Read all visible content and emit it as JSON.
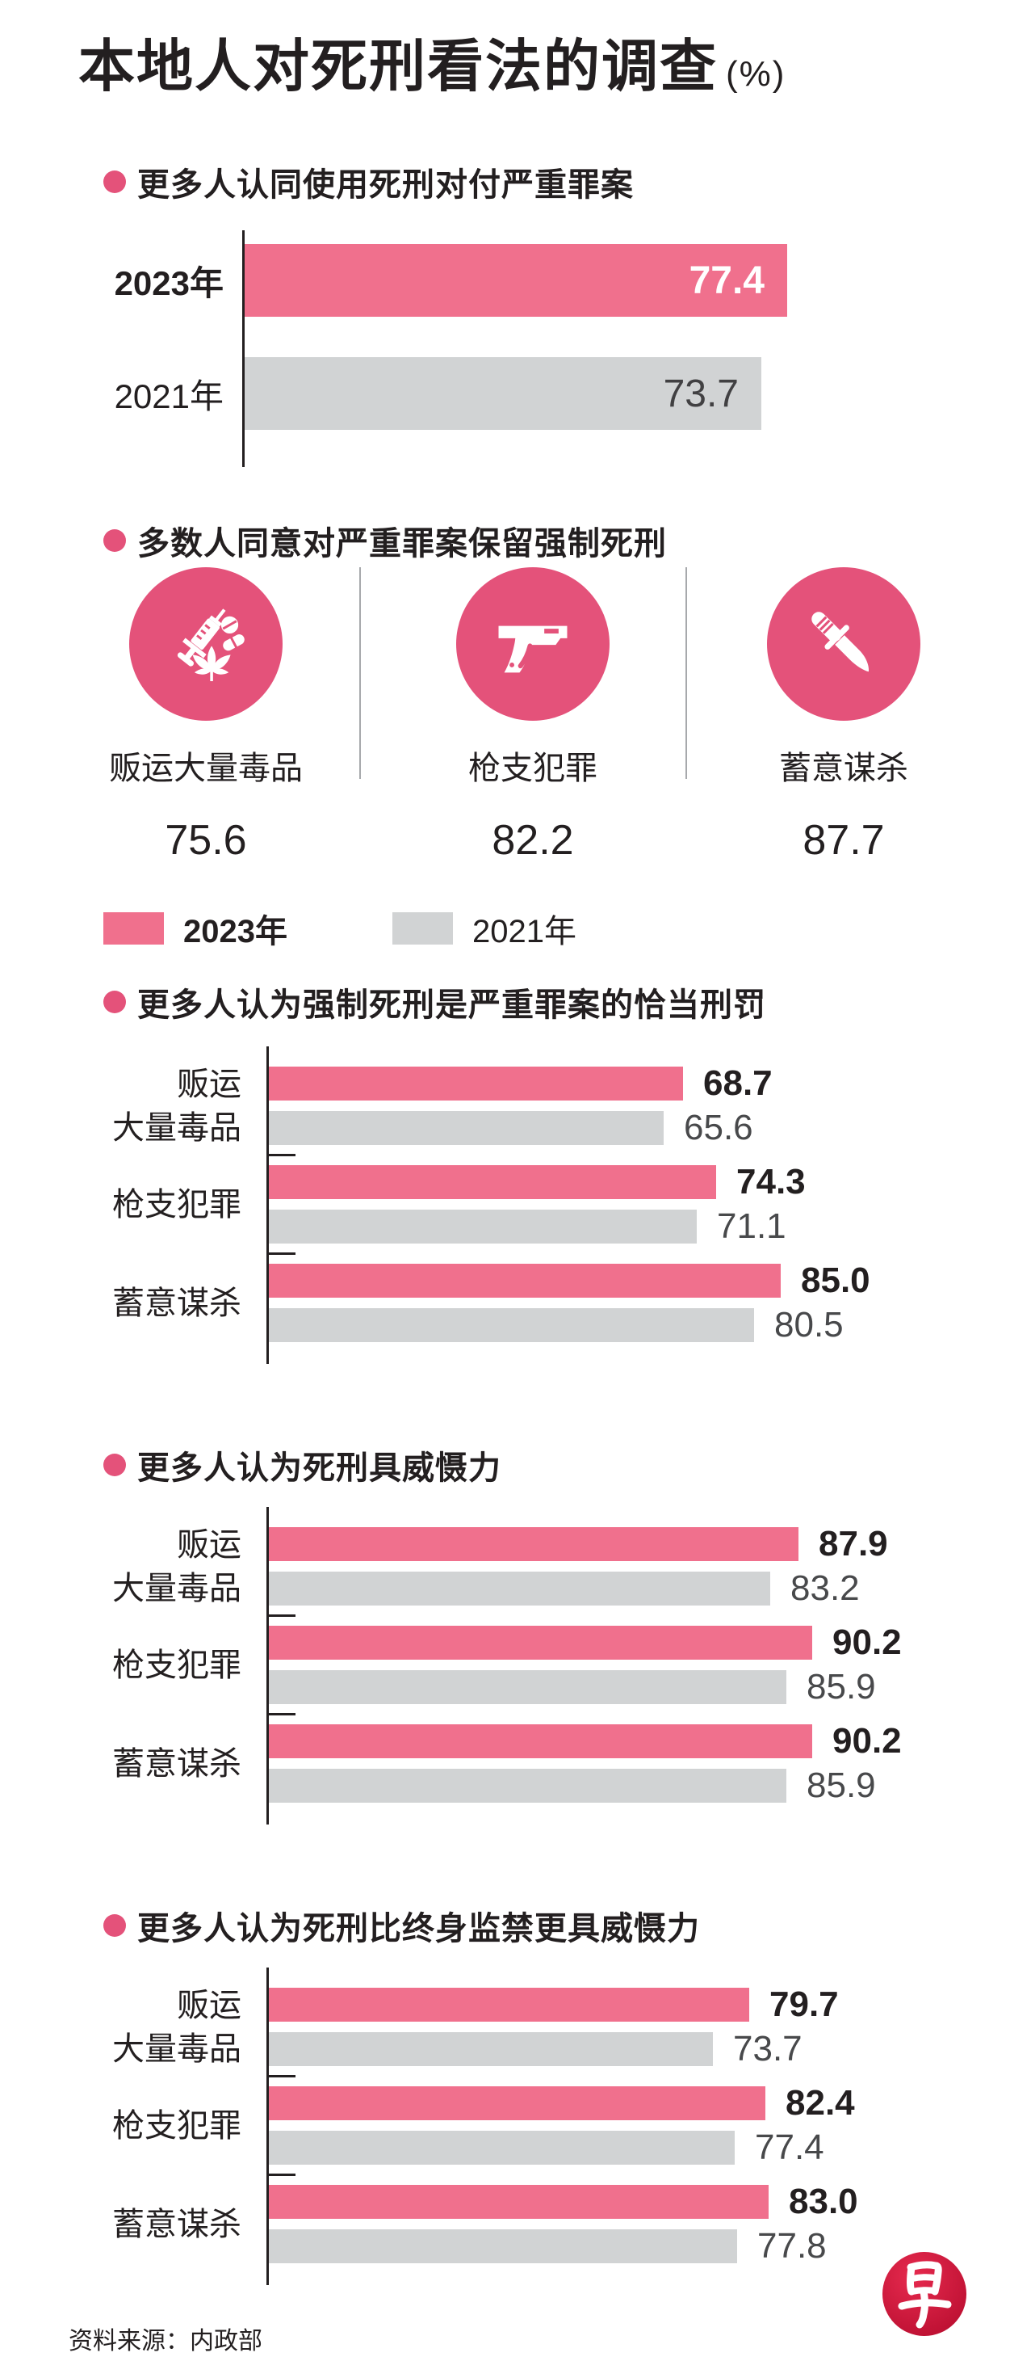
{
  "title": {
    "text": "本地人对死刑看法的调查",
    "unit": "(%)"
  },
  "legend": {
    "items": [
      {
        "label": "2023年",
        "color": "#F0708D"
      },
      {
        "label": "2021年",
        "color": "#D1D3D4"
      }
    ]
  },
  "colors": {
    "bar_pink": "#F0708D",
    "bar_gray": "#D1D3D4",
    "accent_rose": "#E4527A",
    "text_dark": "#231F20",
    "gray_value_text": "#48494B",
    "logo_red": "#C41531"
  },
  "chart_data": [
    {
      "type": "bar",
      "title": "更多人认同使用死刑对付严重罪案",
      "categories": [
        "2023年",
        "2021年"
      ],
      "values": [
        77.4,
        73.7
      ],
      "series_colors": [
        "#F0708D",
        "#D1D3D4"
      ],
      "xlim": [
        0,
        100
      ],
      "value_position": "inside-end",
      "grid": false
    },
    {
      "type": "icon-stats",
      "title": "多数人同意对严重罪案保留强制死刑",
      "items": [
        {
          "icon": "drug-trafficking-icon",
          "label": "贩运大量毒品",
          "value": 75.6
        },
        {
          "icon": "gun-icon",
          "label": "枪支犯罪",
          "value": 82.2
        },
        {
          "icon": "knife-icon",
          "label": "蓄意谋杀",
          "value": 87.7
        }
      ]
    },
    {
      "type": "grouped-bar",
      "title": "更多人认为强制死刑是严重罪案的恰当刑罚",
      "categories": [
        "贩运\n大量毒品",
        "枪支犯罪",
        "蓄意谋杀"
      ],
      "series": [
        {
          "name": "2023年",
          "color": "#F0708D",
          "values": [
            68.7,
            74.3,
            85.0
          ]
        },
        {
          "name": "2021年",
          "color": "#D1D3D4",
          "values": [
            65.6,
            71.1,
            80.5
          ]
        }
      ],
      "xlim": [
        0,
        100
      ],
      "legend_position": "above",
      "grid": false
    },
    {
      "type": "grouped-bar",
      "title": "更多人认为死刑具威慑力",
      "categories": [
        "贩运\n大量毒品",
        "枪支犯罪",
        "蓄意谋杀"
      ],
      "series": [
        {
          "name": "2023年",
          "color": "#F0708D",
          "values": [
            87.9,
            90.2,
            90.2
          ]
        },
        {
          "name": "2021年",
          "color": "#D1D3D4",
          "values": [
            83.2,
            85.9,
            85.9
          ]
        }
      ],
      "xlim": [
        0,
        100
      ],
      "grid": false
    },
    {
      "type": "grouped-bar",
      "title": "更多人认为死刑比终身监禁更具威慑力",
      "categories": [
        "贩运\n大量毒品",
        "枪支犯罪",
        "蓄意谋杀"
      ],
      "series": [
        {
          "name": "2023年",
          "color": "#F0708D",
          "values": [
            79.7,
            82.4,
            83.0
          ]
        },
        {
          "name": "2021年",
          "color": "#D1D3D4",
          "values": [
            73.7,
            77.4,
            77.8
          ]
        }
      ],
      "xlim": [
        0,
        100
      ],
      "grid": false
    }
  ],
  "source": "资料来源：内政部",
  "logo": {
    "glyph": "早"
  }
}
